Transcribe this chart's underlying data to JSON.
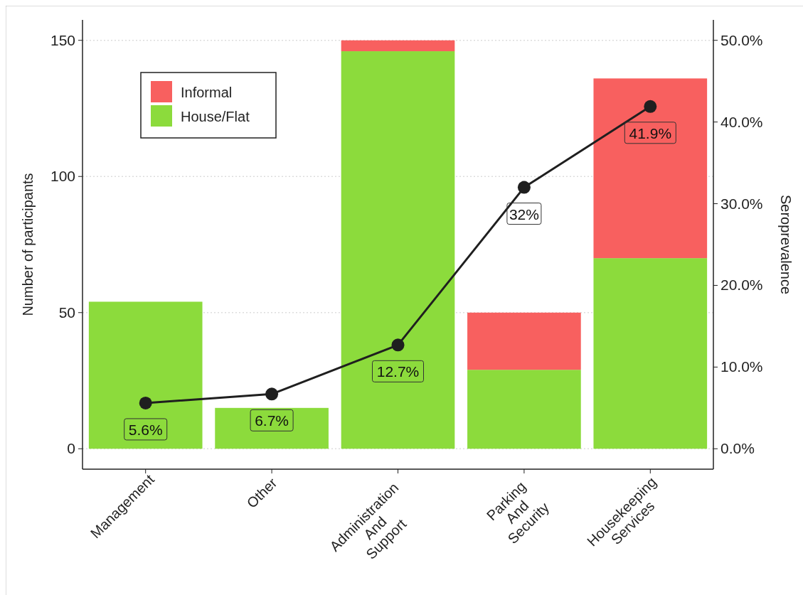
{
  "chart_data": {
    "type": "bar",
    "stacked": true,
    "xlabel": null,
    "ylabel": "Number of participants",
    "y2label": "Seroprevalence",
    "categories": [
      "Management",
      "Other",
      "Administration\nAnd\nSupport",
      "Parking\nAnd\nSecurity",
      "Housekeeping\nServices"
    ],
    "series": [
      {
        "name": "House/Flat",
        "color": "#8cdb3c",
        "values": [
          54,
          15,
          146,
          29,
          70
        ]
      },
      {
        "name": "Informal",
        "color": "#f8605f",
        "values": [
          0,
          0,
          4,
          21,
          66
        ]
      },
      {
        "type": "line",
        "axis": "y2",
        "color": "#1f1f1f",
        "marker": "circle",
        "line_style": "solid",
        "values": [
          5.6,
          6.7,
          12.7,
          32,
          41.9
        ],
        "value_labels": [
          "5.6%",
          "6.7%",
          "12.7%",
          "32%",
          "41.9%"
        ]
      }
    ],
    "ylim": [
      -7.5,
      157.5
    ],
    "yticks": [
      0,
      50,
      100,
      150
    ],
    "y2lim": [
      -2.5,
      52.5
    ],
    "y2ticks": [
      {
        "value": 0,
        "label": "0.0%"
      },
      {
        "value": 10,
        "label": "10.0%"
      },
      {
        "value": 20,
        "label": "20.0%"
      },
      {
        "value": 30,
        "label": "30.0%"
      },
      {
        "value": 40,
        "label": "40.0%"
      },
      {
        "value": 50,
        "label": "50.0%"
      }
    ],
    "grid": "y",
    "legend": "top left"
  }
}
